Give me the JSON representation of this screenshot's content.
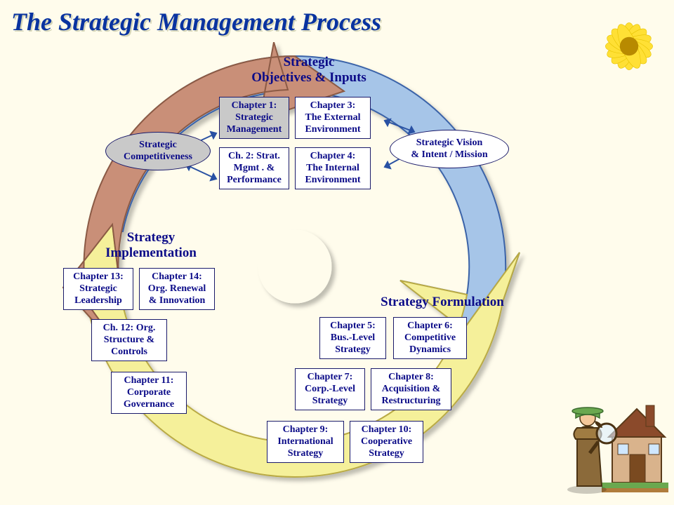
{
  "title": "The Strategic Management Process",
  "background_color": "#fffcec",
  "wheel": {
    "outer_radius": 300,
    "inner_radius": 50,
    "segments": [
      {
        "name": "objectives",
        "label": "Strategic\nObjectives & Inputs",
        "fill": "#a6c5e8",
        "stroke": "#3a63a8"
      },
      {
        "name": "formulation",
        "label": "Strategy Formulation",
        "fill": "#f5f09a",
        "stroke": "#b9aa44"
      },
      {
        "name": "implementation",
        "label": "Strategy\nImplementation",
        "fill": "#c98f78",
        "stroke": "#8b5a44"
      }
    ]
  },
  "ellipses": {
    "competitiveness": {
      "text": "Strategic\nCompetitiveness",
      "shaded": true
    },
    "vision": {
      "text": "Strategic Vision\n& Intent / Mission",
      "shaded": false
    }
  },
  "chapters": {
    "ch1": {
      "text": "Chapter 1:\nStrategic\nManagement",
      "shaded": true
    },
    "ch2": {
      "text": "Ch. 2: Strat.\nMgmt . &\nPerformance",
      "shaded": false
    },
    "ch3": {
      "text": "Chapter 3:\nThe External\nEnvironment",
      "shaded": false
    },
    "ch4": {
      "text": "Chapter 4:\nThe Internal\nEnvironment",
      "shaded": false
    },
    "ch5": {
      "text": "Chapter 5:\nBus.-Level\nStrategy",
      "shaded": false
    },
    "ch6": {
      "text": "Chapter 6:\nCompetitive\nDynamics",
      "shaded": false
    },
    "ch7": {
      "text": "Chapter 7:\nCorp.-Level\nStrategy",
      "shaded": false
    },
    "ch8": {
      "text": "Chapter 8:\nAcquisition &\nRestructuring",
      "shaded": false
    },
    "ch9": {
      "text": "Chapter 9:\nInternational\nStrategy",
      "shaded": false
    },
    "ch10": {
      "text": "Chapter 10:\nCooperative\nStrategy",
      "shaded": false
    },
    "ch11": {
      "text": "Chapter 11:\nCorporate\nGovernance",
      "shaded": false
    },
    "ch12": {
      "text": "Ch. 12: Org.\nStructure &\nControls",
      "shaded": false
    },
    "ch13": {
      "text": "Chapter 13:\nStrategic\nLeadership",
      "shaded": false
    },
    "ch14": {
      "text": "Chapter 14:\nOrg. Renewal\n& Innovation",
      "shaded": false
    }
  },
  "text_color": "#0b0b88",
  "box_border": "#1a1a6a",
  "arrow_color": "#2951a3"
}
